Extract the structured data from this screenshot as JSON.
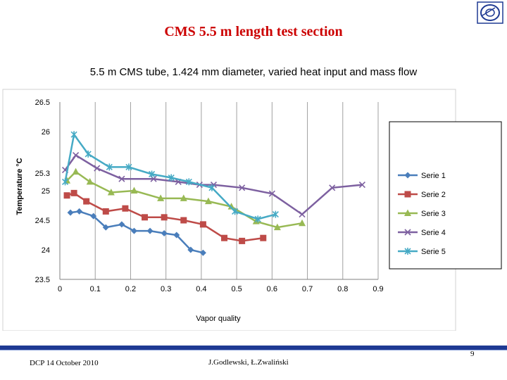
{
  "slide": {
    "title": "CMS 5.5 m length test section",
    "footer_left": "DCP  14 October 2010",
    "footer_center": "J.Godlewski, Ł.Zwaliński",
    "page_number": "9",
    "title_color": "#cc0000",
    "bar_color": "#1f3a93",
    "logo_icon": "cern-logo-icon"
  },
  "chart_data": {
    "type": "line",
    "title": "5.5 m CMS tube, 1.424 mm diameter, varied heat input and mass flow",
    "xlabel": "Vapor quality",
    "ylabel": "Temperature °C",
    "xlim": [
      0,
      0.9
    ],
    "ylim": [
      23.5,
      26.5
    ],
    "x_ticks": [
      "0",
      "0.1",
      "0.2",
      "0.3",
      "0.4",
      "0.5",
      "0.6",
      "0.7",
      "0.8",
      "0.9"
    ],
    "y_ticks": [
      "23.5",
      "24",
      "24.5",
      "25",
      "25.3",
      "26",
      "26.5"
    ],
    "grid": "vertical",
    "legend": "right",
    "series": [
      {
        "name": "Serie 1",
        "color": "#4a7ebb",
        "marker": "diamond",
        "x": [
          0.03,
          0.055,
          0.095,
          0.13,
          0.175,
          0.21,
          0.255,
          0.295,
          0.33,
          0.37,
          0.405
        ],
        "y": [
          24.63,
          24.65,
          24.57,
          24.38,
          24.43,
          24.32,
          24.32,
          24.28,
          24.25,
          24.0,
          23.95
        ]
      },
      {
        "name": "Serie 2",
        "color": "#be4b48",
        "marker": "square",
        "x": [
          0.02,
          0.04,
          0.075,
          0.13,
          0.185,
          0.24,
          0.295,
          0.35,
          0.405,
          0.465,
          0.515,
          0.575
        ],
        "y": [
          24.92,
          24.96,
          24.82,
          24.65,
          24.7,
          24.55,
          24.55,
          24.5,
          24.43,
          24.2,
          24.15,
          24.2
        ]
      },
      {
        "name": "Serie 3",
        "color": "#98b954",
        "marker": "triangle",
        "x": [
          0.02,
          0.045,
          0.085,
          0.145,
          0.21,
          0.285,
          0.35,
          0.42,
          0.485,
          0.555,
          0.615,
          0.685
        ],
        "y": [
          25.17,
          25.32,
          25.15,
          24.97,
          25.0,
          24.87,
          24.87,
          24.82,
          24.73,
          24.48,
          24.38,
          24.45
        ]
      },
      {
        "name": "Serie 4",
        "color": "#7d60a0",
        "marker": "x",
        "x": [
          0.015,
          0.045,
          0.105,
          0.175,
          0.265,
          0.335,
          0.395,
          0.435,
          0.515,
          0.6,
          0.685,
          0.77,
          0.855
        ],
        "y": [
          25.35,
          25.6,
          25.38,
          25.2,
          25.2,
          25.15,
          25.1,
          25.1,
          25.05,
          24.95,
          24.6,
          25.05,
          25.1
        ]
      },
      {
        "name": "Serie 5",
        "color": "#46aac5",
        "marker": "star",
        "x": [
          0.015,
          0.04,
          0.08,
          0.14,
          0.195,
          0.26,
          0.315,
          0.365,
          0.43,
          0.495,
          0.56,
          0.61
        ],
        "y": [
          25.15,
          25.95,
          25.62,
          25.4,
          25.4,
          25.28,
          25.22,
          25.15,
          25.05,
          24.65,
          24.52,
          24.6
        ]
      }
    ]
  }
}
